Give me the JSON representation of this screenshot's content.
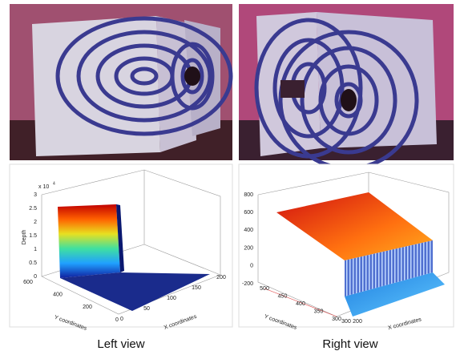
{
  "figure": {
    "panels": [
      {
        "caption": "Left view",
        "plot": {
          "z_multiplier": "x 10",
          "z_exponent": "4",
          "z_label": "Depth",
          "z_ticks": [
            "0",
            "0.5",
            "1",
            "1.5",
            "2",
            "2.5",
            "3"
          ],
          "y_label": "Y coordinates",
          "y_ticks": [
            "600",
            "400",
            "200",
            "0"
          ],
          "x_label": "X coordinates",
          "x_ticks": [
            "0",
            "50",
            "100",
            "150",
            "200"
          ]
        }
      },
      {
        "caption": "Right view",
        "plot": {
          "z_label": null,
          "z_ticks": [
            "-200",
            "0",
            "200",
            "400",
            "600",
            "800"
          ],
          "y_label": "Y coordinates",
          "y_ticks": [
            "500",
            "450",
            "400",
            "350",
            "300"
          ],
          "x_label": "X coordinates",
          "x_ticks": [
            "300",
            "200"
          ]
        }
      }
    ]
  }
}
